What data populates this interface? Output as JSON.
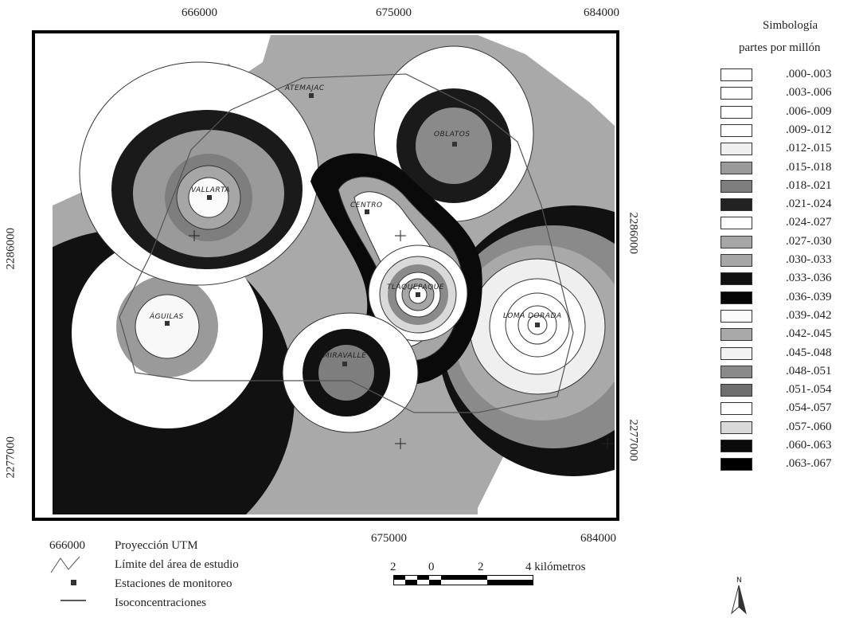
{
  "map": {
    "top_ticks": [
      "666000",
      "675000",
      "684000"
    ],
    "bottom_ticks": [
      "666000",
      "675000",
      "684000"
    ],
    "left_ticks": [
      "2286000",
      "2277000"
    ],
    "right_ticks": [
      "2286000",
      "2277000"
    ],
    "stations": [
      "ATEMAJAC",
      "OBLATOS",
      "VALLARTA",
      "CENTRO",
      "TLAQUEPAQUE",
      "ÁGUILAS",
      "LOMA DORADA",
      "MIRAVALLE"
    ]
  },
  "legend": {
    "title": "Simbología",
    "subtitle": "partes por millón",
    "classes": [
      {
        "label": ".000-.003",
        "color": "#ffffff"
      },
      {
        "label": ".003-.006",
        "color": "#ffffff"
      },
      {
        "label": ".006-.009",
        "color": "#ffffff"
      },
      {
        "label": ".009-.012",
        "color": "#ffffff"
      },
      {
        "label": ".012-.015",
        "color": "#efefef"
      },
      {
        "label": ".015-.018",
        "color": "#9a9a9a"
      },
      {
        "label": ".018-.021",
        "color": "#7e7e7e"
      },
      {
        "label": ".021-.024",
        "color": "#222222"
      },
      {
        "label": ".024-.027",
        "color": "#ffffff"
      },
      {
        "label": ".027-.030",
        "color": "#a6a6a6"
      },
      {
        "label": ".030-.033",
        "color": "#a6a6a6"
      },
      {
        "label": ".033-.036",
        "color": "#111111"
      },
      {
        "label": ".036-.039",
        "color": "#050505"
      },
      {
        "label": ".039-.042",
        "color": "#fafafa"
      },
      {
        "label": ".042-.045",
        "color": "#a9a9a9"
      },
      {
        "label": ".045-.048",
        "color": "#f2f2f2"
      },
      {
        "label": ".048-.051",
        "color": "#8a8a8a"
      },
      {
        "label": ".051-.054",
        "color": "#6e6e6e"
      },
      {
        "label": ".054-.057",
        "color": "#ffffff"
      },
      {
        "label": ".057-.060",
        "color": "#d9d9d9"
      },
      {
        "label": ".060-.063",
        "color": "#0a0a0a"
      },
      {
        "label": ".063-.067",
        "color": "#000000"
      }
    ]
  },
  "bottom_legend": {
    "projection_code": "666000",
    "projection": "Proyección UTM",
    "boundary": "Límite del área de estudio",
    "stations": "Estaciones de monitoreo",
    "isolines": "Isoconcentraciones"
  },
  "scale_bar": {
    "labels": [
      "2",
      "0",
      "2",
      "4 kilómetros"
    ]
  },
  "north_arrow": {
    "label": "N"
  }
}
